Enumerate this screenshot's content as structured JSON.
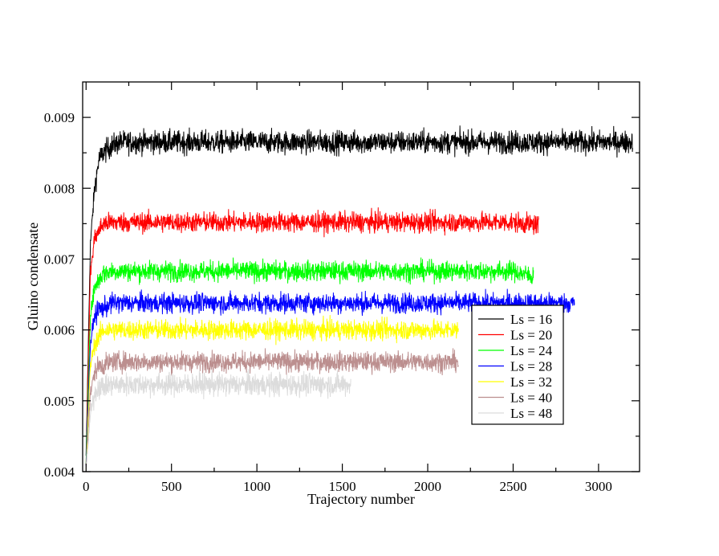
{
  "chart_data": {
    "type": "line",
    "xlabel": "Trajectory number",
    "ylabel": "Gluino condensate",
    "xlim": [
      -20,
      3240
    ],
    "ylim": [
      0.004,
      0.0095
    ],
    "x_ticks": [
      0,
      500,
      1000,
      1500,
      2000,
      2500,
      3000
    ],
    "x_tick_labels": [
      "0",
      "500",
      "1000",
      "1500",
      "2000",
      "2500",
      "3000"
    ],
    "y_ticks": [
      0.004,
      0.005,
      0.006,
      0.007,
      0.008,
      0.009
    ],
    "y_tick_labels": [
      "0.004",
      "0.005",
      "0.006",
      "0.007",
      "0.008",
      "0.009"
    ],
    "grid": false,
    "legend_position": "lower-right",
    "series": [
      {
        "name": "Ls = 16",
        "color": "#000000",
        "x_end": 3200,
        "plateau": 0.00865,
        "noise": 8e-05,
        "x": [
          0,
          25,
          50,
          75,
          100,
          150,
          200,
          500,
          1000,
          1500,
          2000,
          2500,
          3000,
          3200
        ],
        "y": [
          0.0042,
          0.0072,
          0.008,
          0.0084,
          0.0085,
          0.0086,
          0.00865,
          0.00865,
          0.00865,
          0.00865,
          0.00865,
          0.00865,
          0.00865,
          0.00865
        ]
      },
      {
        "name": "Ls = 20",
        "color": "#ff0000",
        "x_end": 2650,
        "plateau": 0.00752,
        "noise": 7e-05,
        "x": [
          0,
          25,
          50,
          75,
          100,
          150,
          500,
          1000,
          1500,
          2000,
          2500,
          2650
        ],
        "y": [
          0.0041,
          0.0068,
          0.0073,
          0.0074,
          0.0075,
          0.00752,
          0.00752,
          0.00752,
          0.00752,
          0.00752,
          0.00752,
          0.00748
        ]
      },
      {
        "name": "Ls = 24",
        "color": "#00ff00",
        "x_end": 2620,
        "plateau": 0.00683,
        "noise": 7e-05,
        "x": [
          0,
          25,
          50,
          75,
          100,
          150,
          500,
          1000,
          1500,
          2000,
          2500,
          2620
        ],
        "y": [
          0.0041,
          0.0062,
          0.0066,
          0.0067,
          0.0068,
          0.00683,
          0.00683,
          0.00683,
          0.00683,
          0.00683,
          0.00683,
          0.00675
        ]
      },
      {
        "name": "Ls = 28",
        "color": "#0000ff",
        "x_end": 2860,
        "plateau": 0.00638,
        "noise": 7e-05,
        "x": [
          0,
          25,
          50,
          75,
          100,
          150,
          500,
          1000,
          1500,
          2000,
          2500,
          2860
        ],
        "y": [
          0.0041,
          0.0058,
          0.0062,
          0.0063,
          0.0063,
          0.00638,
          0.00638,
          0.00638,
          0.00638,
          0.00638,
          0.00638,
          0.00638
        ]
      },
      {
        "name": "Ls = 32",
        "color": "#ffff00",
        "x_end": 2180,
        "plateau": 0.006,
        "noise": 7e-05,
        "x": [
          0,
          25,
          50,
          75,
          100,
          150,
          500,
          1000,
          1500,
          2000,
          2180
        ],
        "y": [
          0.004,
          0.0055,
          0.0058,
          0.0059,
          0.006,
          0.006,
          0.006,
          0.006,
          0.006,
          0.006,
          0.006
        ]
      },
      {
        "name": "Ls = 40",
        "color": "#bc8f8f",
        "x_end": 2180,
        "plateau": 0.00555,
        "noise": 7e-05,
        "x": [
          0,
          25,
          50,
          75,
          100,
          150,
          500,
          1000,
          1500,
          2000,
          2180
        ],
        "y": [
          0.004,
          0.0051,
          0.0054,
          0.0055,
          0.0055,
          0.00555,
          0.00555,
          0.00555,
          0.00555,
          0.00555,
          0.00555
        ]
      },
      {
        "name": "Ls = 48",
        "color": "#dcdcdc",
        "x_end": 1550,
        "plateau": 0.00523,
        "noise": 8e-05,
        "x": [
          0,
          25,
          50,
          75,
          100,
          150,
          500,
          1000,
          1500,
          1550
        ],
        "y": [
          0.004,
          0.0048,
          0.0051,
          0.0052,
          0.0052,
          0.00523,
          0.00523,
          0.00523,
          0.00523,
          0.00523
        ]
      }
    ]
  }
}
